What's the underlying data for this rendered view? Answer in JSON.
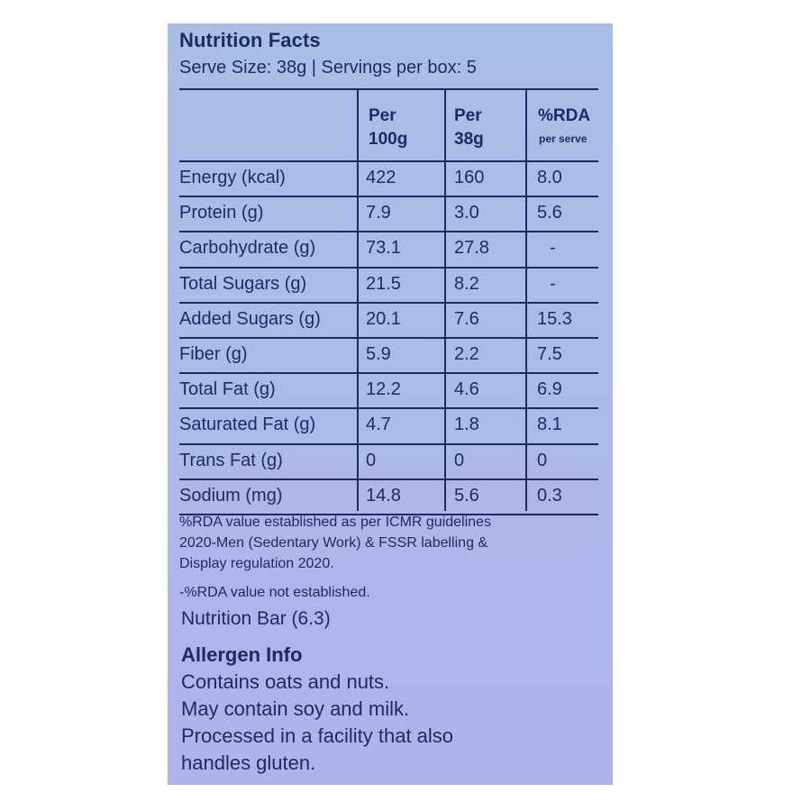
{
  "title": "Nutrition Facts",
  "serving_info": "Serve Size: 38g | Servings per box: 5",
  "columns": {
    "per_100g_line1": "Per",
    "per_100g_line2": "100g",
    "per_38g_line1": "Per",
    "per_38g_line2": "38g",
    "rda_line1": "%RDA",
    "rda_line2": "per serve"
  },
  "rows": [
    {
      "nutrient": "Energy (kcal)",
      "per_100g": "422",
      "per_serve": "160",
      "rda": "8.0"
    },
    {
      "nutrient": "Protein (g)",
      "per_100g": "7.9",
      "per_serve": "3.0",
      "rda": "5.6"
    },
    {
      "nutrient": "Carbohydrate (g)",
      "per_100g": "73.1",
      "per_serve": "27.8",
      "rda": "-"
    },
    {
      "nutrient": "Total Sugars (g)",
      "per_100g": "21.5",
      "per_serve": "8.2",
      "rda": "-"
    },
    {
      "nutrient": "Added Sugars (g)",
      "per_100g": "20.1",
      "per_serve": "7.6",
      "rda": "15.3"
    },
    {
      "nutrient": "Fiber (g)",
      "per_100g": "5.9",
      "per_serve": "2.2",
      "rda": "7.5"
    },
    {
      "nutrient": "Total Fat (g)",
      "per_100g": "12.2",
      "per_serve": "4.6",
      "rda": "6.9"
    },
    {
      "nutrient": "Saturated Fat (g)",
      "per_100g": "4.7",
      "per_serve": "1.8",
      "rda": "8.1"
    },
    {
      "nutrient": "Trans Fat (g)",
      "per_100g": "0",
      "per_serve": "0",
      "rda": "0"
    },
    {
      "nutrient": "Sodium (mg)",
      "per_100g": "14.8",
      "per_serve": "5.6",
      "rda": "0.3"
    }
  ],
  "footnote_lines": [
    "%RDA value established as per ICMR guidelines",
    "2020-Men (Sedentary Work) & FSSR labelling &",
    "Display regulation 2020."
  ],
  "dash_note": "-%RDA value not established.",
  "nutrition_bar": "Nutrition Bar (6.3)",
  "allergen": {
    "title": "Allergen Info",
    "lines": [
      "Contains oats and nuts.",
      "May contain soy and milk.",
      "Processed in a facility that also",
      "handles gluten."
    ]
  },
  "colors": {
    "panel_background": "#abbbe7",
    "text": "#1f2a63"
  }
}
